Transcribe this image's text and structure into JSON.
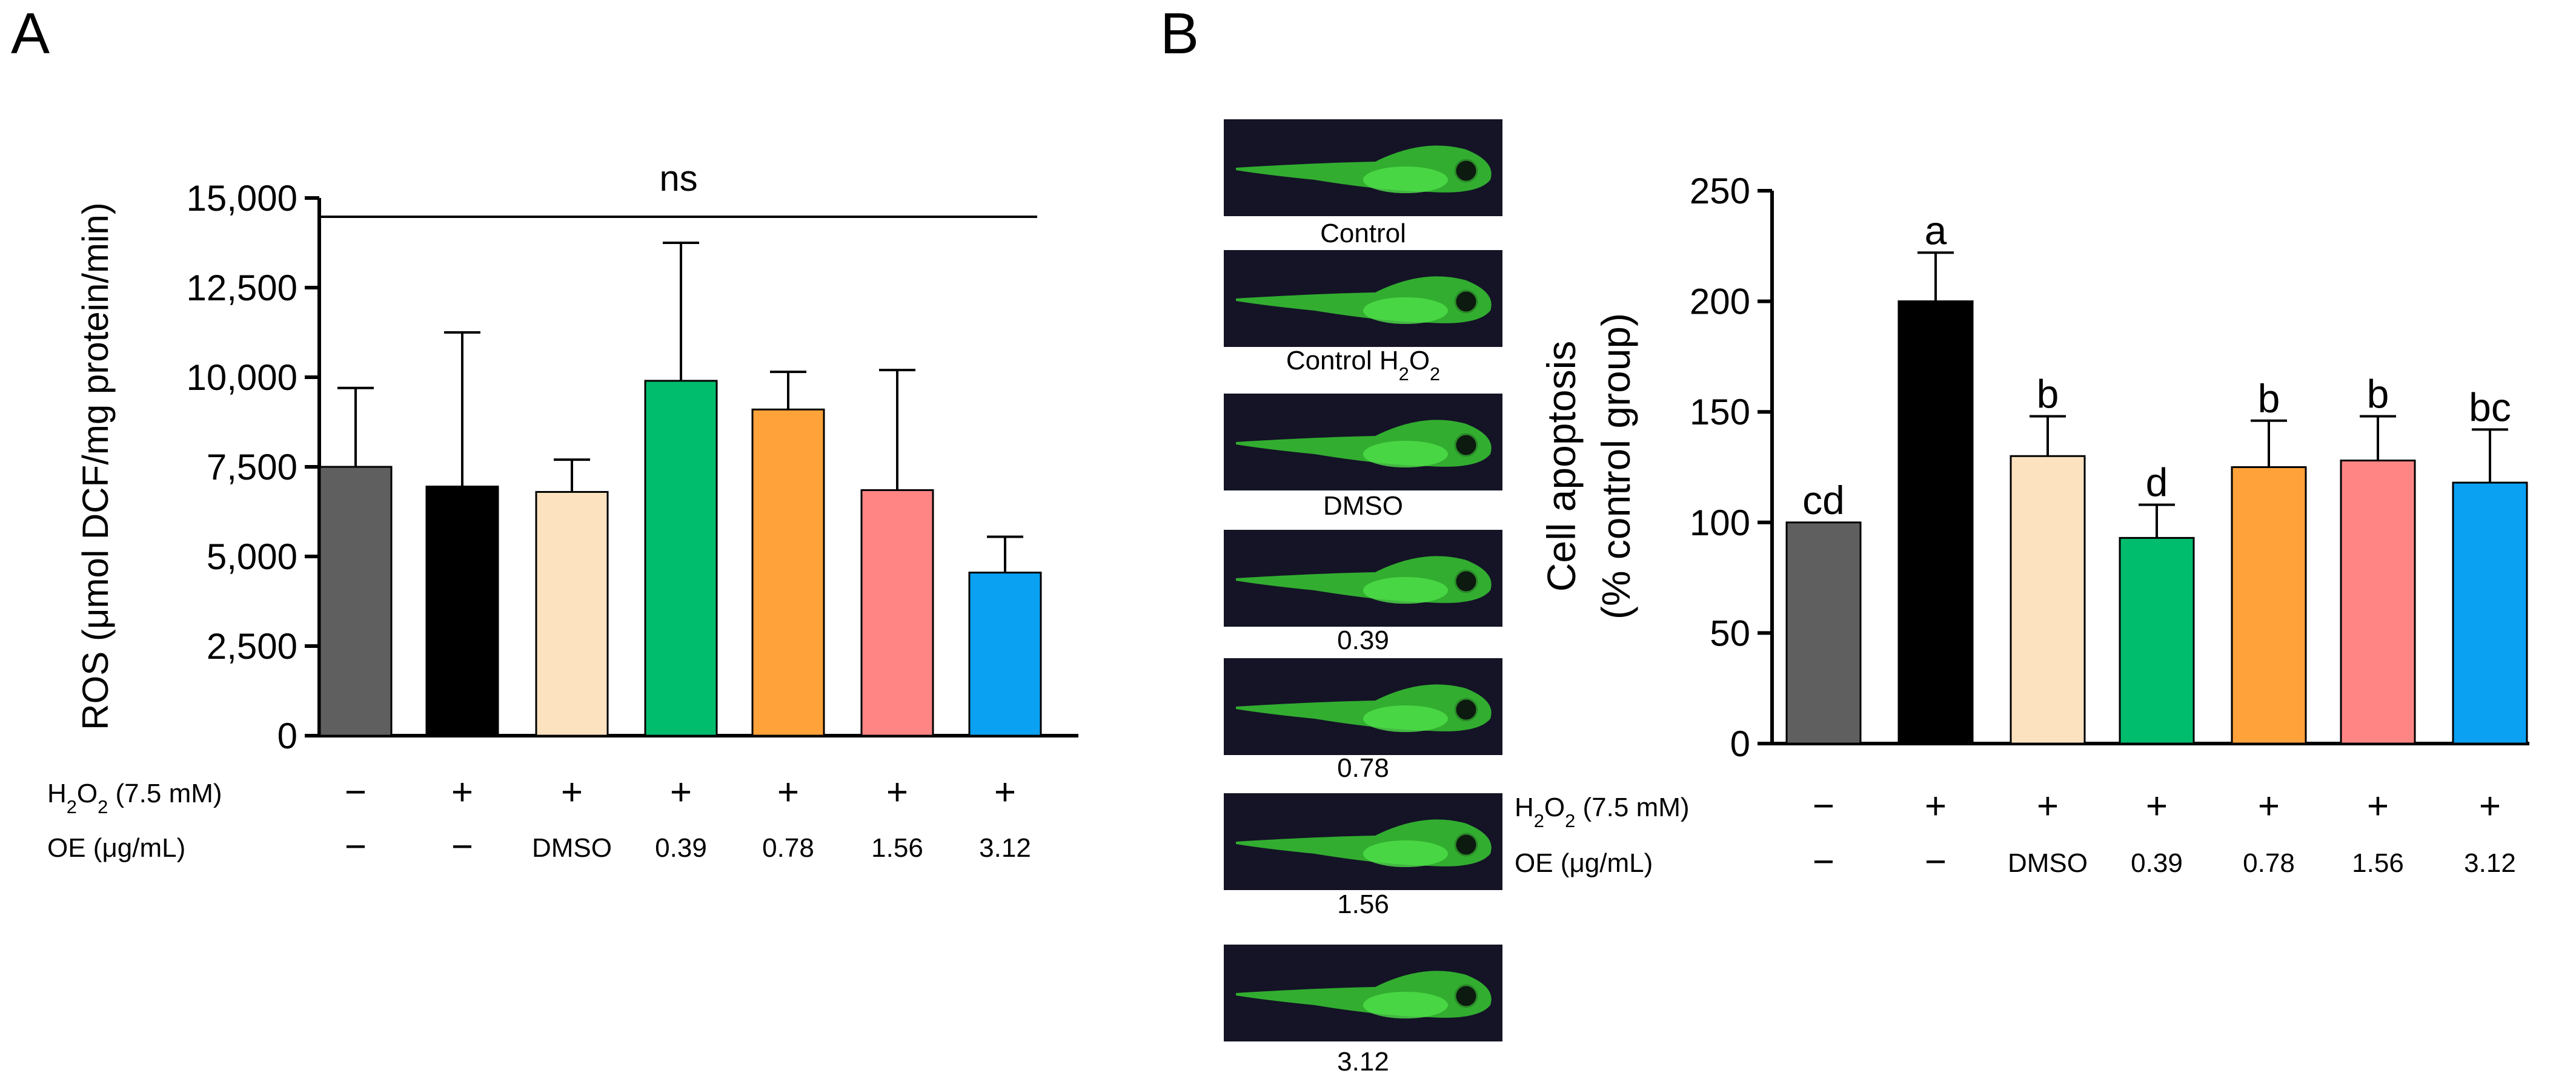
{
  "panels": {
    "a_label": "A",
    "b_label": "B"
  },
  "conditions": {
    "h2o2_label": "H2O2 (7.5 mM)",
    "oe_label": "OE (μg/mL)",
    "h2o2": [
      "−",
      "+",
      "+",
      "+",
      "+",
      "+",
      "+"
    ],
    "oe": [
      "−",
      "−",
      "DMSO",
      "0.39",
      "0.78",
      "1.56",
      "3.12"
    ]
  },
  "colors": {
    "bars": [
      "#5f5f5f",
      "#000000",
      "#fde2c0",
      "#00bd6e",
      "#ffa23a",
      "#ff8585",
      "#0aa1f2"
    ],
    "zebrafish_bg": "#141426",
    "zebrafish_green": "#37c833"
  },
  "zebrafish_images": {
    "captions": [
      "Control",
      "Control  H2O2",
      "DMSO",
      "0.39",
      "0.78",
      "1.56",
      "3.12"
    ]
  },
  "chart_data": [
    {
      "type": "bar",
      "panel": "A",
      "title": "",
      "ylabel": "ROS (μmol DCF/mg protein/min)",
      "xlabel": "",
      "categories": [
        "Control",
        "H2O2",
        "H2O2 + DMSO",
        "H2O2 + OE 0.39",
        "H2O2 + OE 0.78",
        "H2O2 + OE 1.56",
        "H2O2 + OE 3.12"
      ],
      "values": [
        7500,
        6950,
        6800,
        9900,
        9100,
        6850,
        4550
      ],
      "errors": [
        2200,
        4300,
        900,
        3850,
        1050,
        3350,
        1000
      ],
      "ylim": [
        0,
        15000
      ],
      "yticks": [
        0,
        2500,
        5000,
        7500,
        10000,
        12500,
        15000
      ],
      "ytick_labels": [
        "0",
        "2,500",
        "5,000",
        "7,500",
        "10,000",
        "12,500",
        "15,000"
      ],
      "annotations": [
        "ns"
      ],
      "grid": false
    },
    {
      "type": "bar",
      "panel": "B",
      "title": "",
      "ylabel_line1": "Cell apoptosis",
      "ylabel_line2": "(% control group)",
      "xlabel": "",
      "categories": [
        "Control",
        "H2O2",
        "H2O2 + DMSO",
        "H2O2 + OE 0.39",
        "H2O2 + OE 0.78",
        "H2O2 + OE 1.56",
        "H2O2 + OE 3.12"
      ],
      "values": [
        100,
        200,
        130,
        93,
        125,
        128,
        118
      ],
      "errors": [
        0,
        22,
        18,
        15,
        21,
        20,
        24
      ],
      "significance_letters": [
        "cd",
        "a",
        "b",
        "d",
        "b",
        "b",
        "bc"
      ],
      "ylim": [
        0,
        250
      ],
      "yticks": [
        0,
        50,
        100,
        150,
        200,
        250
      ],
      "ytick_labels": [
        "0",
        "50",
        "100",
        "150",
        "200",
        "250"
      ],
      "grid": false
    }
  ]
}
